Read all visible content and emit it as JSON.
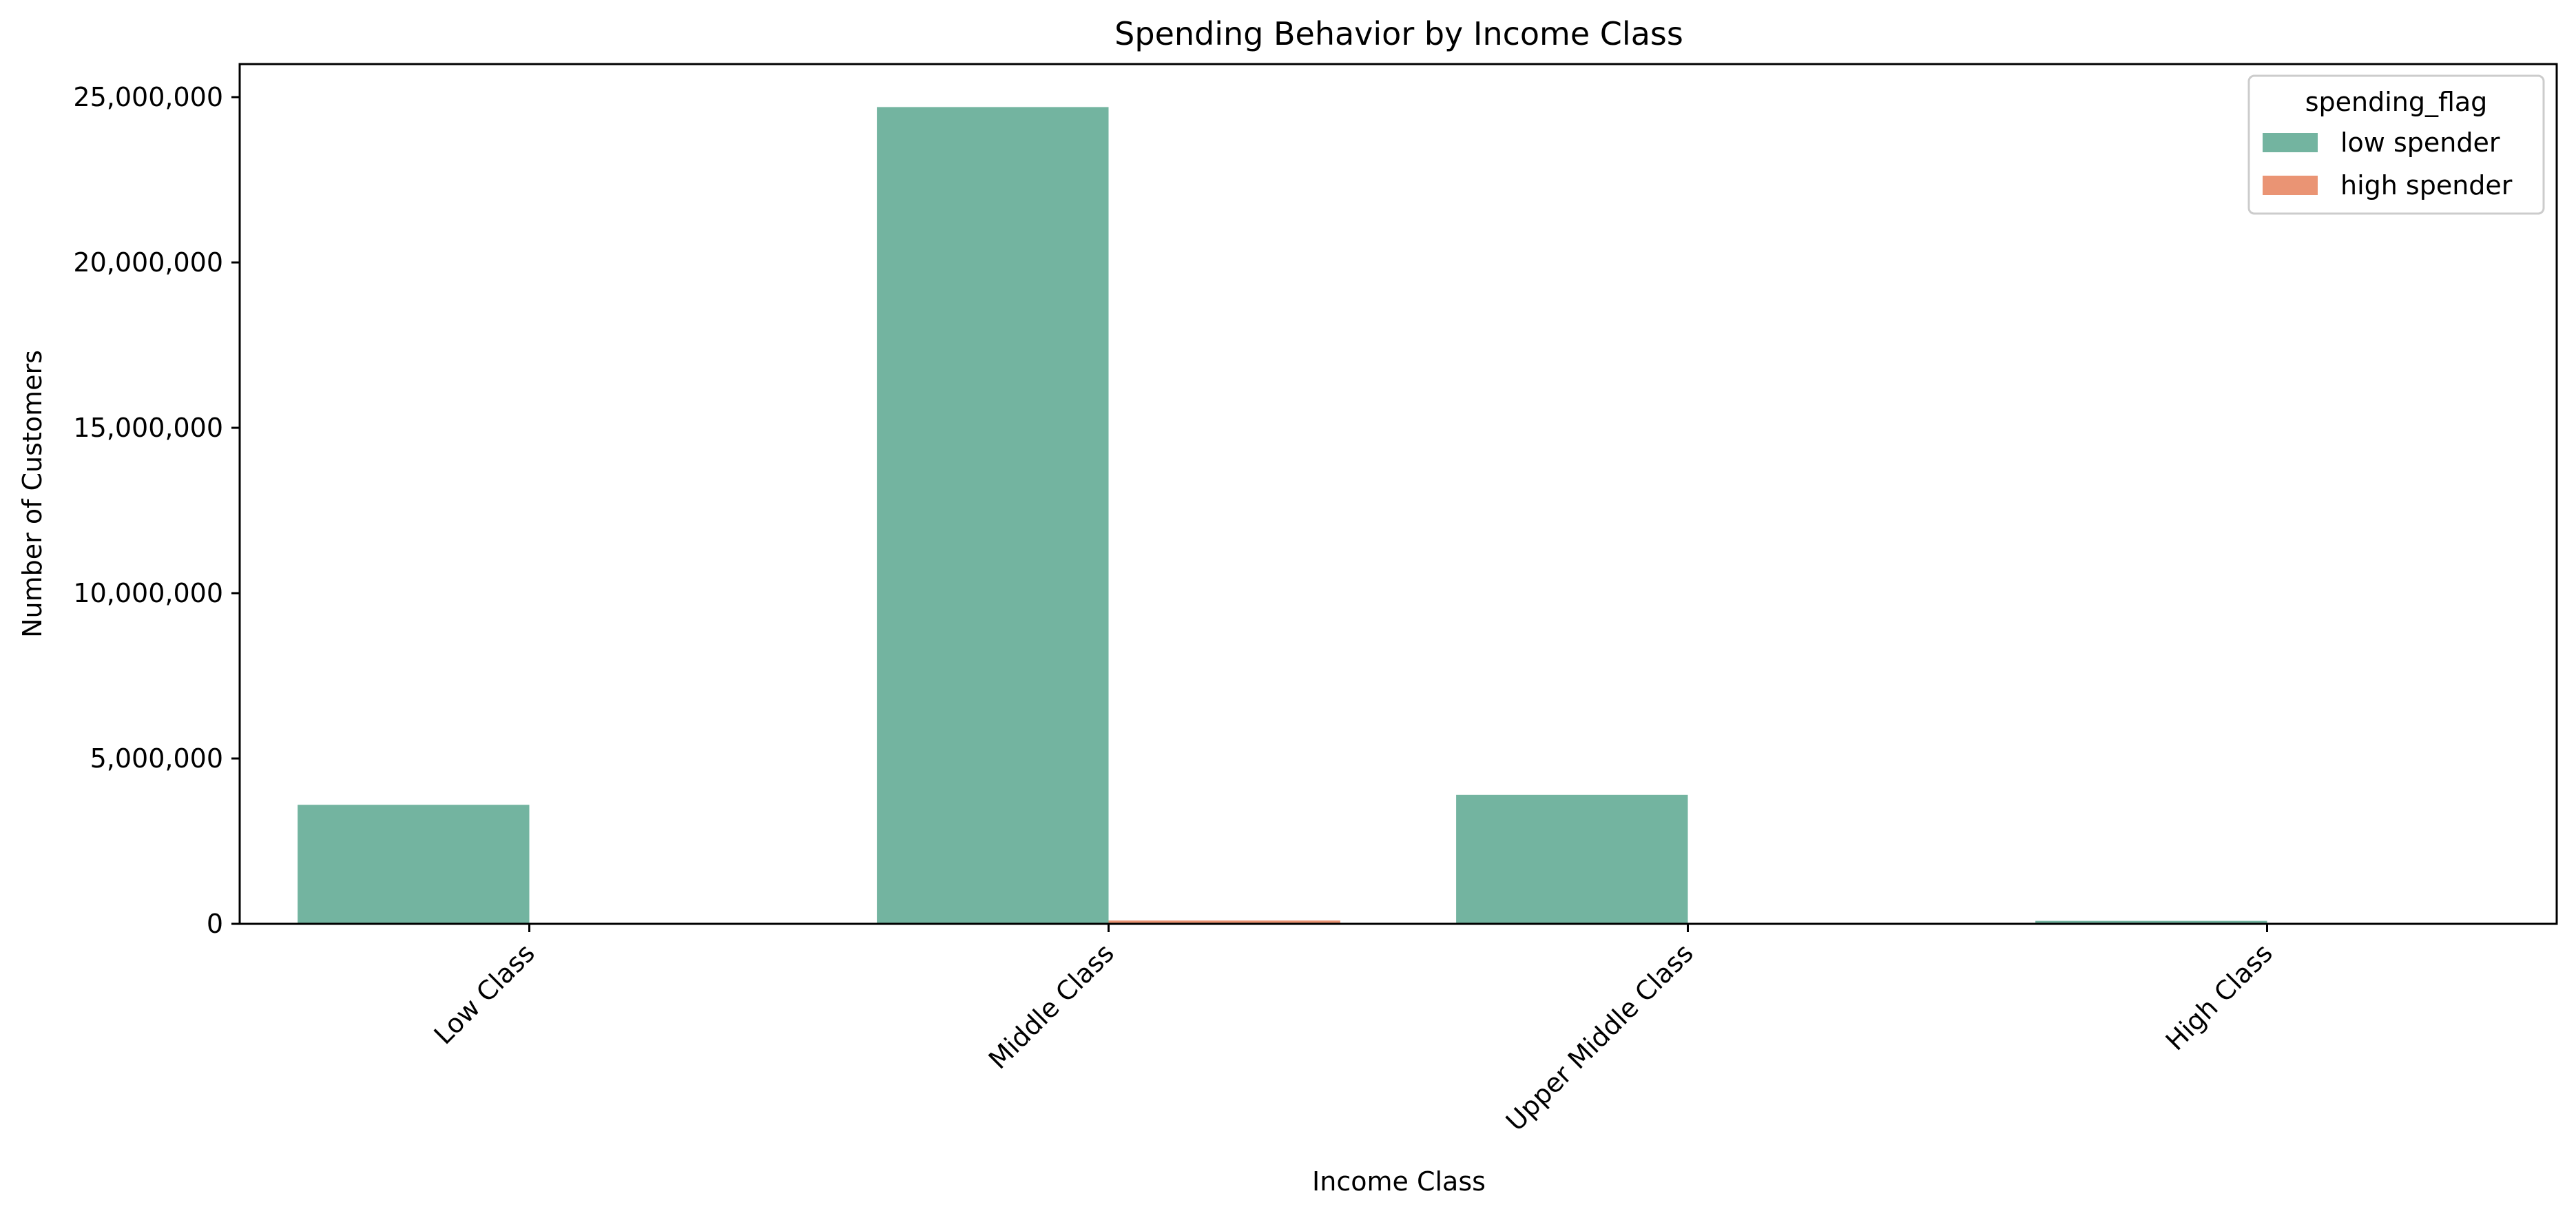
{
  "chart_data": {
    "type": "bar",
    "title": "Spending Behavior by Income Class",
    "xlabel": "Income Class",
    "ylabel": "Number of Customers",
    "categories": [
      "Low Class",
      "Middle Class",
      "Upper Middle Class",
      "High Class"
    ],
    "series": [
      {
        "name": "low spender",
        "color": "#73b4a0",
        "values": [
          3600000,
          24700000,
          3900000,
          90000
        ]
      },
      {
        "name": "high spender",
        "color": "#ea9474",
        "values": [
          20000,
          100000,
          20000,
          1000
        ]
      }
    ],
    "ylim": [
      0,
      26000000
    ],
    "yticks": [
      0,
      5000000,
      10000000,
      15000000,
      20000000,
      25000000
    ],
    "ytick_labels": [
      "0",
      "5,000,000",
      "10,000,000",
      "15,000,000",
      "20,000,000",
      "25,000,000"
    ],
    "legend_title": "spending_flag",
    "legend_position": "top-right",
    "grid": false
  }
}
